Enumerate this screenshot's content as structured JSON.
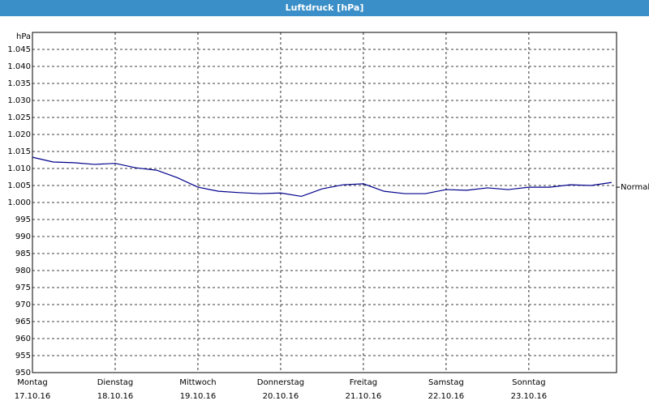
{
  "chart_data": {
    "type": "line",
    "title": "Luftdruck [hPa]",
    "y_label": "hPa",
    "x": [
      0,
      0.25,
      0.5,
      0.75,
      1,
      1.25,
      1.5,
      1.75,
      2,
      2.25,
      2.5,
      2.75,
      3,
      3.25,
      3.5,
      3.75,
      4,
      4.25,
      4.5,
      4.75,
      5,
      5.25,
      5.5,
      5.75,
      6,
      6.25,
      6.5,
      6.75,
      7
    ],
    "series": [
      {
        "color": "#00008b",
        "values": [
          1013.3,
          1011.9,
          1011.7,
          1011.2,
          1011.5,
          1010.2,
          1009.5,
          1007.3,
          1004.5,
          1003.3,
          1002.9,
          1002.6,
          1002.8,
          1001.8,
          1004.0,
          1005.2,
          1005.5,
          1003.3,
          1002.6,
          1002.6,
          1003.8,
          1003.6,
          1004.3,
          1003.8,
          1004.5,
          1004.5,
          1005.2,
          1005.0,
          1005.9
        ]
      }
    ],
    "xlim": [
      0,
      7.06
    ],
    "xticks": [
      {
        "value": 0,
        "label": "Montag"
      },
      {
        "value": 1,
        "label": "Dienstag"
      },
      {
        "value": 2,
        "label": "Mittwoch"
      },
      {
        "value": 3,
        "label": "Donnerstag"
      },
      {
        "value": 4,
        "label": "Freitag"
      },
      {
        "value": 5,
        "label": "Samstag"
      },
      {
        "value": 6,
        "label": "Sonntag"
      }
    ],
    "xtick_dates": [
      "17.10.16",
      "18.10.16",
      "19.10.16",
      "20.10.16",
      "21.10.16",
      "22.10.16",
      "23.10.16"
    ],
    "ylim": [
      950,
      1050
    ],
    "yticks": [
      950,
      955,
      960,
      965,
      970,
      975,
      980,
      985,
      990,
      995,
      {
        "value": 1000,
        "label": "1.000"
      },
      {
        "value": 1005,
        "label": "1.005"
      },
      {
        "value": 1010,
        "label": "1.010"
      },
      {
        "value": 1015,
        "label": "1.015"
      },
      {
        "value": 1020,
        "label": "1.020"
      },
      {
        "value": 1025,
        "label": "1.025"
      },
      {
        "value": 1030,
        "label": "1.030"
      },
      {
        "value": 1035,
        "label": "1.035"
      },
      {
        "value": 1040,
        "label": "1.040"
      },
      {
        "value": 1045,
        "label": "1.045"
      }
    ],
    "reference": {
      "label": "Normal",
      "value": 1004.5
    },
    "grid": true
  }
}
